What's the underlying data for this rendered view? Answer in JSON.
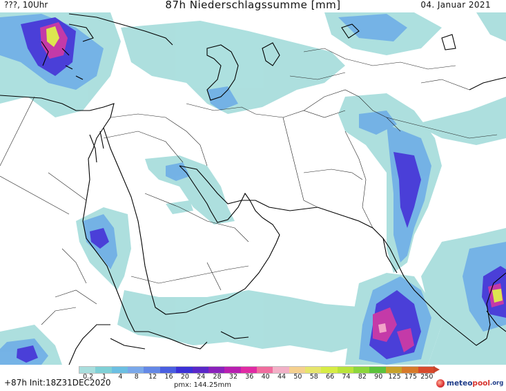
{
  "header": {
    "location_time": "???, 10Uhr",
    "title": "87h Niederschlagssumme [mm]",
    "date": "04. Januar 2021"
  },
  "legend": {
    "labels": [
      "0.2",
      "1",
      "4",
      "8",
      "12",
      "16",
      "20",
      "24",
      "28",
      "32",
      "36",
      "40",
      "44",
      "50",
      "58",
      "66",
      "74",
      "82",
      "90",
      "125",
      "175",
      "250"
    ],
    "colors": [
      "#a8dedd",
      "#7fd0d6",
      "#6cbfe2",
      "#7aa8ea",
      "#6488e6",
      "#4a5fe0",
      "#3b31d6",
      "#5a28c8",
      "#8a22bb",
      "#b81fb0",
      "#e02ba3",
      "#f06d9e",
      "#f3b0c7",
      "#f5d08e",
      "#e6e56c",
      "#d7ec45",
      "#b9e33a",
      "#8cd63c",
      "#5cc23c",
      "#c7a22a",
      "#d77a2a",
      "#d84a2c"
    ]
  },
  "footer": {
    "run_info": "+87h Init:18Z31DEC2020",
    "pmx": "pmx: 144.25mm",
    "logo_meteo": "meteo",
    "logo_pool": "pool",
    "logo_org": ".org"
  }
}
